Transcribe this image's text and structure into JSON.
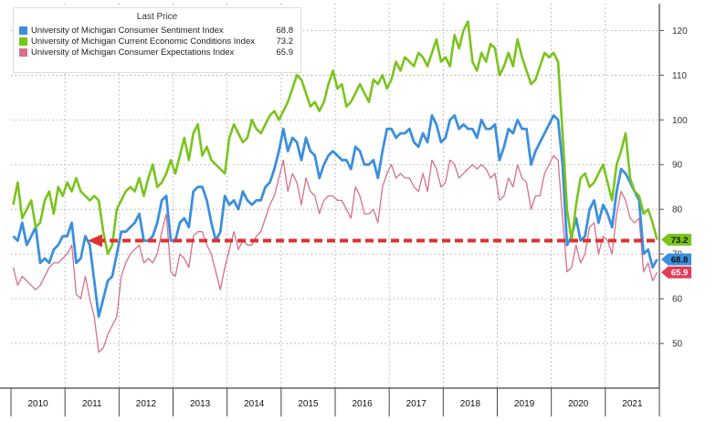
{
  "chart_data": {
    "type": "line",
    "legend_title": "Last Price",
    "legend_position": "top-left",
    "ylim": [
      40,
      126
    ],
    "y_ticks": [
      50,
      60,
      70,
      80,
      90,
      100,
      110,
      120
    ],
    "x_year_labels": [
      "2010",
      "2011",
      "2012",
      "2013",
      "2014",
      "2015",
      "2016",
      "2017",
      "2018",
      "2019",
      "2020",
      "2021"
    ],
    "grid": true,
    "series": [
      {
        "name": "University of Michigan Current Economic Conditions Index",
        "last": "73.2",
        "color": "#7ac41c",
        "values": [
          81,
          86,
          78,
          80,
          82,
          76,
          77,
          82,
          84,
          79,
          85,
          83,
          86,
          84,
          87,
          84,
          83,
          82,
          83,
          82,
          75,
          70,
          72,
          80,
          82,
          84,
          85,
          84,
          87,
          83,
          87,
          90,
          85,
          86,
          88,
          91,
          88,
          92,
          96,
          91,
          97,
          99,
          92,
          94,
          91,
          90,
          89,
          88,
          96,
          99,
          97,
          95,
          96,
          100,
          98,
          97,
          99,
          101,
          102,
          100,
          102,
          104,
          107,
          110,
          109,
          106,
          103,
          104,
          102,
          104,
          108,
          111,
          107,
          108,
          103,
          104,
          106,
          108,
          106,
          104,
          109,
          108,
          110,
          107,
          109,
          113,
          111,
          114,
          113,
          112,
          115,
          114,
          112,
          115,
          118,
          113,
          114,
          112,
          119,
          116,
          120,
          122,
          113,
          111,
          115,
          113,
          117,
          116,
          110,
          112,
          115,
          112,
          118,
          114,
          111,
          108,
          109,
          112,
          115,
          114,
          115,
          113,
          97,
          80,
          73,
          81,
          87,
          88,
          85,
          86,
          88,
          90,
          86,
          82,
          90,
          93,
          97,
          87,
          84,
          83,
          79,
          80,
          77,
          73.2
        ]
      },
      {
        "name": "University of Michigan Consumer Sentiment Index",
        "last": "68.8",
        "color": "#3c8fde",
        "values": [
          74,
          73,
          77,
          72,
          74,
          76,
          68,
          69,
          68,
          71,
          72,
          74,
          74,
          77,
          68,
          69,
          74,
          72,
          64,
          56,
          60,
          64,
          65,
          70,
          75,
          75,
          76,
          77,
          79,
          73,
          73,
          74,
          77,
          82,
          83,
          73,
          73,
          77,
          78,
          76,
          84,
          85,
          85,
          82,
          77,
          73,
          75,
          83,
          81,
          82,
          80,
          84,
          82,
          81,
          82,
          82,
          85,
          86,
          89,
          93,
          98,
          93,
          96,
          95,
          91,
          96,
          93,
          92,
          87,
          90,
          92,
          93,
          92,
          91,
          91,
          89,
          94,
          93,
          90,
          90,
          91,
          87,
          93,
          98,
          98,
          96,
          97,
          97,
          98,
          95,
          94,
          97,
          95,
          101,
          99,
          95,
          96,
          100,
          101,
          98,
          99,
          98,
          98,
          96,
          100,
          98,
          98,
          99,
          91,
          94,
          98,
          97,
          100,
          98,
          98,
          90,
          93,
          95,
          97,
          99,
          101,
          100,
          90,
          72,
          74,
          78,
          73,
          74,
          80,
          82,
          77,
          81,
          79,
          76,
          84,
          89,
          88,
          86,
          84,
          82,
          70,
          71,
          67,
          68.8
        ]
      },
      {
        "name": "University of Michigan Consumer Expectations Index",
        "last": "65.9",
        "color": "#d6708a",
        "values": [
          67,
          63,
          65,
          64,
          63,
          62,
          63,
          65,
          67,
          68,
          68,
          69,
          70,
          72,
          61,
          60,
          65,
          60,
          56,
          48,
          49,
          52,
          54,
          56,
          65,
          68,
          70,
          71,
          72,
          68,
          69,
          68,
          70,
          75,
          79,
          66,
          65,
          70,
          69,
          67,
          74,
          75,
          75,
          72,
          70,
          66,
          62,
          67,
          71,
          75,
          71,
          73,
          72,
          72,
          74,
          75,
          78,
          81,
          83,
          87,
          91,
          84,
          88,
          86,
          81,
          87,
          84,
          83,
          79,
          82,
          83,
          83,
          82,
          82,
          80,
          78,
          85,
          83,
          79,
          79,
          80,
          77,
          85,
          88,
          90,
          87,
          88,
          87,
          87,
          85,
          84,
          88,
          84,
          91,
          89,
          85,
          86,
          91,
          90,
          87,
          88,
          89,
          90,
          89,
          90,
          89,
          87,
          88,
          82,
          83,
          87,
          85,
          90,
          87,
          86,
          80,
          83,
          83,
          88,
          90,
          92,
          91,
          78,
          66,
          67,
          72,
          68,
          70,
          76,
          77,
          70,
          74,
          73,
          70,
          79,
          84,
          82,
          78,
          77,
          78,
          66,
          68,
          64,
          65.9
        ]
      }
    ],
    "reference_line": {
      "value": 73,
      "style": "dashed",
      "color": "#e0302f"
    }
  }
}
